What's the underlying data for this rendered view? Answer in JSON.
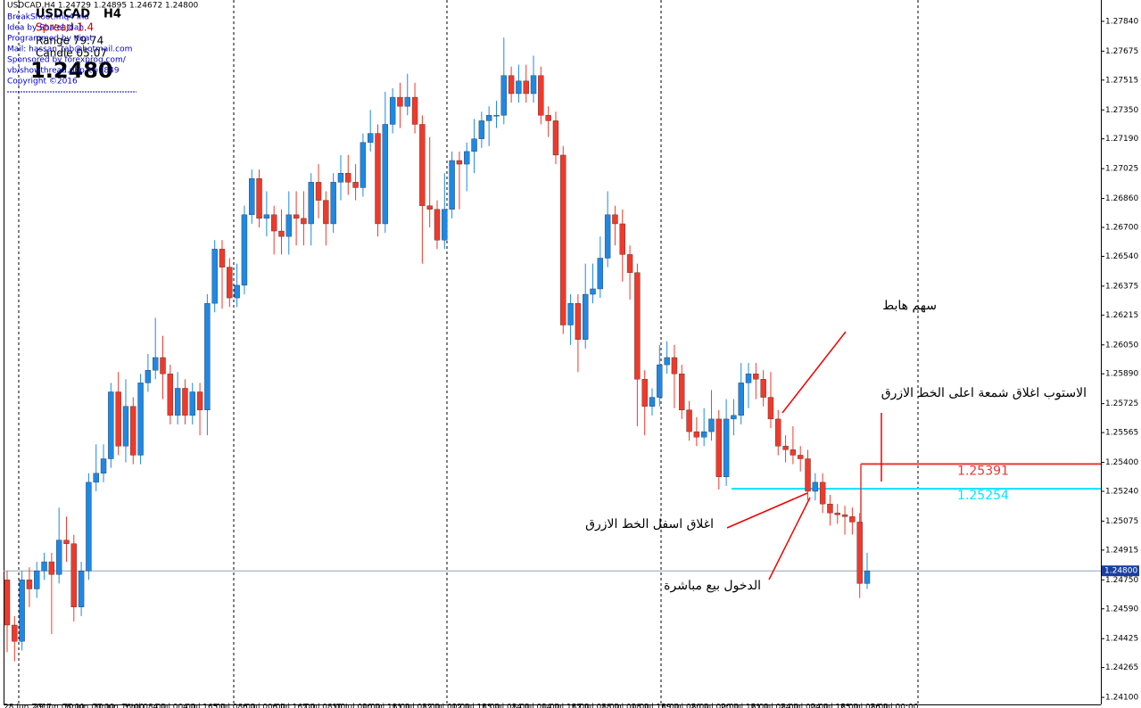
{
  "header": {
    "symbol_line": "USDCAD,H4  1.24729 1.24895 1.24672 1.24800"
  },
  "info_panel": {
    "pair": "USDCAD",
    "timeframe": "H4",
    "spread": "Spread 1.4",
    "range": "Range  79.74",
    "candle": "Candle  05:07",
    "price": "1.2480",
    "credits": [
      "BreakShoot.mq4 Ind",
      "Idea by Sha'el Jdah",
      "Programmed by Kirat",
      "Mail: hassan_tab@hotmail.com",
      "Sponsored by forexprog.com/",
      "vb/showthread.php?t=2849",
      "Copyright ©2016"
    ]
  },
  "chart_data": {
    "type": "candlestick",
    "up_color": "#1e88e5",
    "down_color": "#f0392b",
    "ylim": [
      1.24061,
      1.27958
    ],
    "yticks": [
      {
        "value": 1.2784,
        "label": "1.27840"
      },
      1.27675,
      1.27515,
      {
        "value": 1.2735,
        "label": "1.27350"
      },
      {
        "value": 1.2719,
        "label": "1.27190"
      },
      1.27025,
      {
        "value": 1.2686,
        "label": "1.26860"
      },
      {
        "value": 1.267,
        "label": "1.26700"
      },
      {
        "value": 1.2654,
        "label": "1.26540"
      },
      1.26375,
      1.26215,
      {
        "value": 1.2605,
        "label": "1.26050"
      },
      {
        "value": 1.2589,
        "label": "1.25890"
      },
      1.25725,
      1.25565,
      {
        "value": 1.254,
        "label": "1.25400"
      },
      {
        "value": 1.2524,
        "label": "1.25240"
      },
      1.25075,
      1.24915,
      {
        "value": 1.2475,
        "label": "1.24750"
      },
      {
        "value": 1.2459,
        "label": "1.24590"
      },
      1.24425,
      1.24265,
      {
        "value": 1.241,
        "label": "1.24100"
      }
    ],
    "open": [
      1.2475,
      1.245,
      1.2441,
      1.2475,
      1.247,
      1.248,
      1.2485,
      1.2478,
      1.2497,
      1.2495,
      1.246,
      1.248,
      1.2529,
      1.2534,
      1.2542,
      1.2579,
      1.2549,
      1.2571,
      1.2544,
      1.2584,
      1.2591,
      1.2598,
      1.2589,
      1.2566,
      1.2581,
      1.2566,
      1.2579,
      1.2569,
      1.2628,
      1.2658,
      1.2648,
      1.2631,
      1.2638,
      1.2677,
      1.2697,
      1.2675,
      1.2677,
      1.2668,
      1.2665,
      1.2677,
      1.2675,
      1.2672,
      1.2695,
      1.2685,
      1.2672,
      1.2695,
      1.27,
      1.2695,
      1.2692,
      1.2717,
      1.2722,
      1.2672,
      1.2727,
      1.2742,
      1.2737,
      1.2742,
      1.2727,
      1.2682,
      1.268,
      1.2663,
      1.268,
      1.2707,
      1.2705,
      1.2712,
      1.2719,
      1.2729,
      1.2732,
      1.2732,
      1.2754,
      1.2744,
      1.2751,
      1.2744,
      1.2754,
      1.2732,
      1.2729,
      1.271,
      1.2616,
      1.2628,
      1.2608,
      1.2633,
      1.2636,
      1.2653,
      1.2677,
      1.2672,
      1.2655,
      1.2645,
      1.2586,
      1.2571,
      1.2576,
      1.2594,
      1.2598,
      1.2589,
      1.2569,
      1.2557,
      1.2554,
      1.2557,
      1.2564,
      1.2532,
      1.2564,
      1.2566,
      1.2584,
      1.2589,
      1.2586,
      1.2576,
      1.2564,
      1.2549,
      1.2547,
      1.2544,
      1.2542,
      1.2524,
      1.2529,
      1.2517,
      1.2512,
      1.2511,
      1.251,
      1.2507,
      1.2473
    ],
    "high": [
      1.248,
      1.2455,
      1.248,
      1.2482,
      1.2485,
      1.249,
      1.249,
      1.2515,
      1.251,
      1.25,
      1.2485,
      1.2534,
      1.255,
      1.255,
      1.2584,
      1.259,
      1.2586,
      1.2576,
      1.2589,
      1.26,
      1.262,
      1.261,
      1.2594,
      1.259,
      1.2586,
      1.2584,
      1.2584,
      1.2633,
      1.2663,
      1.2663,
      1.2653,
      1.265,
      1.2682,
      1.2702,
      1.2702,
      1.269,
      1.2682,
      1.268,
      1.269,
      1.269,
      1.269,
      1.27,
      1.2705,
      1.269,
      1.27,
      1.271,
      1.271,
      1.2705,
      1.2722,
      1.2735,
      1.2727,
      1.2745,
      1.2747,
      1.275,
      1.2755,
      1.275,
      1.2732,
      1.272,
      1.2685,
      1.27,
      1.2712,
      1.2712,
      1.2717,
      1.273,
      1.2734,
      1.2737,
      1.274,
      1.2775,
      1.2759,
      1.276,
      1.276,
      1.2765,
      1.2759,
      1.2737,
      1.2734,
      1.2715,
      1.2633,
      1.2633,
      1.265,
      1.265,
      1.2665,
      1.269,
      1.2682,
      1.268,
      1.266,
      1.265,
      1.2591,
      1.2581,
      1.2605,
      1.2607,
      1.2605,
      1.2594,
      1.2574,
      1.2565,
      1.257,
      1.258,
      1.2569,
      1.2575,
      1.2575,
      1.2595,
      1.2595,
      1.2595,
      1.2591,
      1.259,
      1.2569,
      1.2555,
      1.256,
      1.2549,
      1.2547,
      1.2534,
      1.2534,
      1.2522,
      1.2517,
      1.2516,
      1.2515,
      1.2512,
      1.249
    ],
    "low": [
      1.2435,
      1.243,
      1.2436,
      1.246,
      1.2465,
      1.2475,
      1.2445,
      1.2473,
      1.2485,
      1.2452,
      1.2455,
      1.2475,
      1.2524,
      1.2529,
      1.2537,
      1.2544,
      1.254,
      1.2539,
      1.2539,
      1.2579,
      1.2586,
      1.2575,
      1.2561,
      1.2561,
      1.2561,
      1.2561,
      1.2555,
      1.2555,
      1.2623,
      1.2625,
      1.2626,
      1.2626,
      1.2633,
      1.2672,
      1.267,
      1.2665,
      1.2655,
      1.2655,
      1.2655,
      1.266,
      1.266,
      1.266,
      1.2675,
      1.266,
      1.2667,
      1.2685,
      1.2688,
      1.2685,
      1.2687,
      1.2712,
      1.2665,
      1.2667,
      1.2722,
      1.2725,
      1.2732,
      1.2722,
      1.265,
      1.267,
      1.2658,
      1.2658,
      1.2675,
      1.268,
      1.269,
      1.27,
      1.2714,
      1.2715,
      1.2725,
      1.2727,
      1.2739,
      1.2739,
      1.2739,
      1.2739,
      1.2727,
      1.272,
      1.2705,
      1.2611,
      1.2605,
      1.259,
      1.2603,
      1.2628,
      1.2631,
      1.2648,
      1.266,
      1.264,
      1.263,
      1.256,
      1.2555,
      1.2566,
      1.2571,
      1.2589,
      1.257,
      1.2564,
      1.2552,
      1.2549,
      1.2549,
      1.2552,
      1.2525,
      1.2527,
      1.2555,
      1.2561,
      1.257,
      1.2575,
      1.2571,
      1.2559,
      1.2544,
      1.254,
      1.2539,
      1.2535,
      1.2519,
      1.2519,
      1.2512,
      1.2505,
      1.2506,
      1.25,
      1.25,
      1.2465,
      1.247
    ],
    "close": [
      1.245,
      1.2441,
      1.2475,
      1.247,
      1.248,
      1.2485,
      1.2478,
      1.2497,
      1.2495,
      1.246,
      1.248,
      1.2529,
      1.2534,
      1.2542,
      1.2579,
      1.2549,
      1.2571,
      1.2544,
      1.2584,
      1.2591,
      1.2598,
      1.2589,
      1.2566,
      1.2581,
      1.2566,
      1.2579,
      1.2569,
      1.2628,
      1.2658,
      1.2648,
      1.2631,
      1.2638,
      1.2677,
      1.2697,
      1.2675,
      1.2677,
      1.2668,
      1.2665,
      1.2677,
      1.2675,
      1.2672,
      1.2695,
      1.2685,
      1.2672,
      1.2695,
      1.27,
      1.2695,
      1.2692,
      1.2717,
      1.2722,
      1.2672,
      1.2727,
      1.2742,
      1.2737,
      1.2742,
      1.2727,
      1.2682,
      1.268,
      1.2663,
      1.268,
      1.2707,
      1.2705,
      1.2712,
      1.2719,
      1.2729,
      1.2732,
      1.2732,
      1.2754,
      1.2744,
      1.2751,
      1.2744,
      1.2754,
      1.2732,
      1.2729,
      1.271,
      1.2616,
      1.2628,
      1.2608,
      1.2633,
      1.2636,
      1.2653,
      1.2677,
      1.2672,
      1.2655,
      1.2645,
      1.2586,
      1.2571,
      1.2576,
      1.2594,
      1.2598,
      1.2589,
      1.2569,
      1.2557,
      1.2554,
      1.2557,
      1.2564,
      1.2532,
      1.2564,
      1.2566,
      1.2584,
      1.2589,
      1.2586,
      1.2576,
      1.2564,
      1.2549,
      1.2547,
      1.2544,
      1.2542,
      1.2524,
      1.2529,
      1.2517,
      1.2512,
      1.2511,
      1.251,
      1.2507,
      1.2473,
      1.248
    ],
    "current_price": {
      "value": 1.248,
      "label": "1.24800"
    },
    "levels": [
      {
        "value": 1.25391,
        "color": "#e53935"
      },
      {
        "value": 1.25254,
        "color": "#00e5ff"
      }
    ],
    "time_labels": [
      "28 Jun 2017",
      "29 Jun 08:00",
      "30 Jun 00:00",
      "30 Jun 16:00",
      "3 Jul 08:00",
      "4 Jul 00:00",
      "4 Jul 16:00",
      "5 Jul 08:00",
      "6 Jul 00:00",
      "6 Jul 16:00",
      "7 Jul 08:00",
      "10 Jul 00:00",
      "10 Jul 16:00",
      "11 Jul 08:00",
      "12 Jul 00:00",
      "12 Jul 16:00",
      "13 Jul 08:00",
      "14 Jul 00:00",
      "14 Jul 16:00",
      "17 Jul 08:00",
      "18 Jul 00:00",
      "18 Jul 16:00",
      "19 Jul 08:00",
      "20 Jul 00:00",
      "20 Jul 16:00",
      "21 Jul 08:00",
      "24 Jul 00:00",
      "24 Jul 16:00",
      "25 Jul 08:00",
      "26 Jul 00:00"
    ],
    "annotations": [
      "سهم هابط",
      "الاستوب  اغلاق شمعة اعلى الخط الازرق",
      "اغلاق اسفل الخط الازرق",
      "الدخول بيع مباشرة"
    ]
  }
}
